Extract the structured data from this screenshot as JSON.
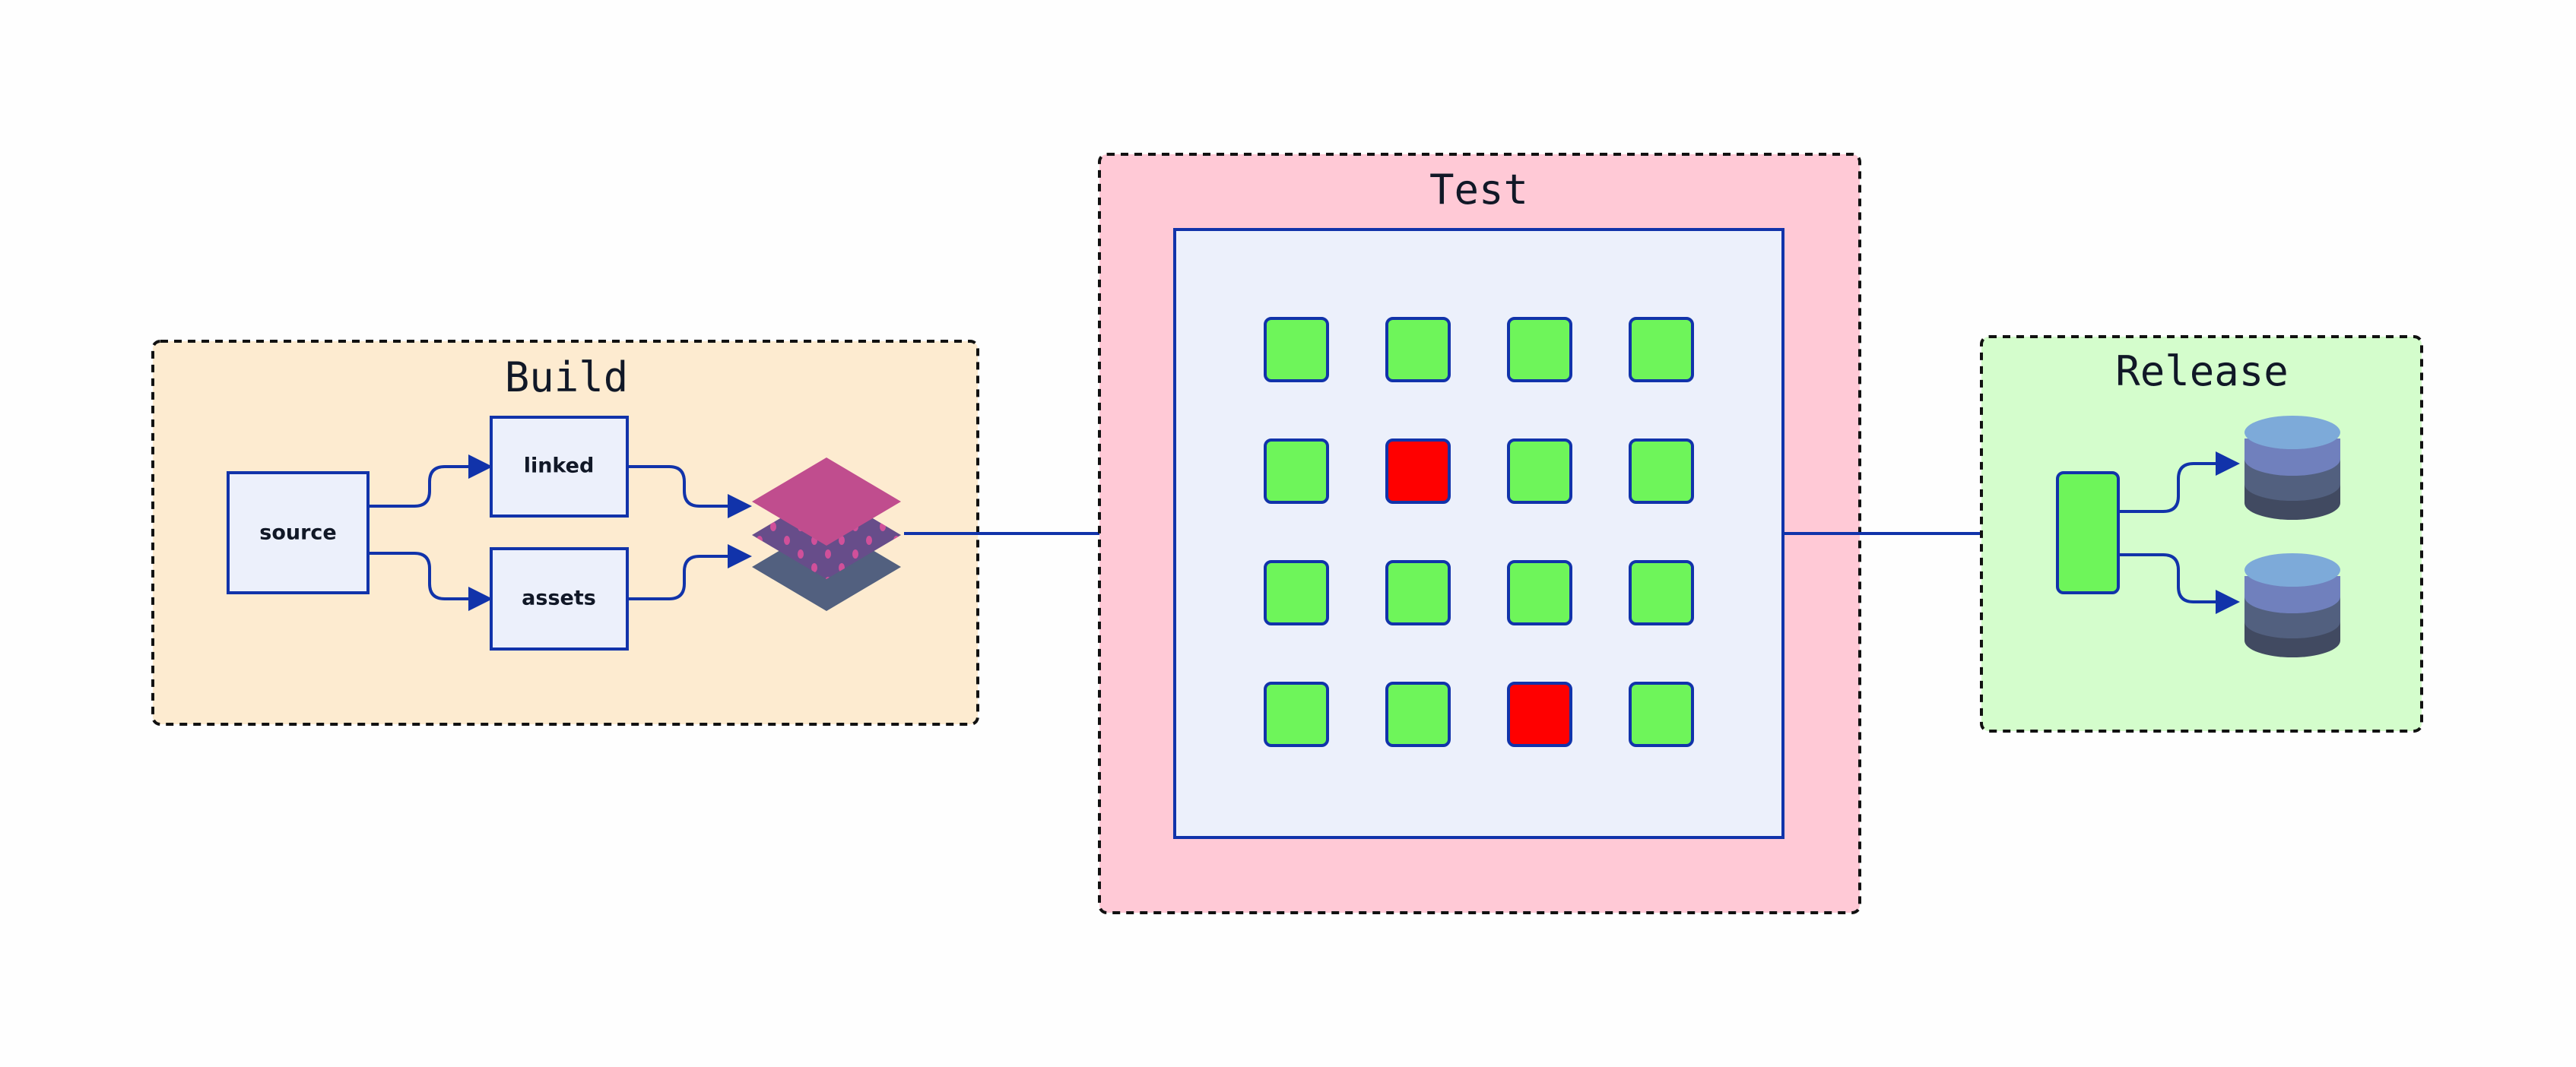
{
  "colors": {
    "edge": "#1133aa",
    "build_bg": "#fdebd0",
    "test_bg": "#ffc9d6",
    "release_bg": "#d4fdcc",
    "node_fill": "#ecf0fb",
    "pass": "#6ef55a",
    "fail": "#ff0000"
  },
  "build": {
    "title": "Build",
    "nodes": {
      "source": "source",
      "linked": "linked",
      "assets": "assets"
    },
    "output_icon": "layers-icon"
  },
  "test": {
    "title": "Test",
    "grid": [
      [
        "pass",
        "pass",
        "pass",
        "pass"
      ],
      [
        "pass",
        "fail",
        "pass",
        "pass"
      ],
      [
        "pass",
        "pass",
        "pass",
        "pass"
      ],
      [
        "pass",
        "pass",
        "fail",
        "pass"
      ]
    ]
  },
  "release": {
    "title": "Release",
    "targets_icon": "database-icon"
  }
}
